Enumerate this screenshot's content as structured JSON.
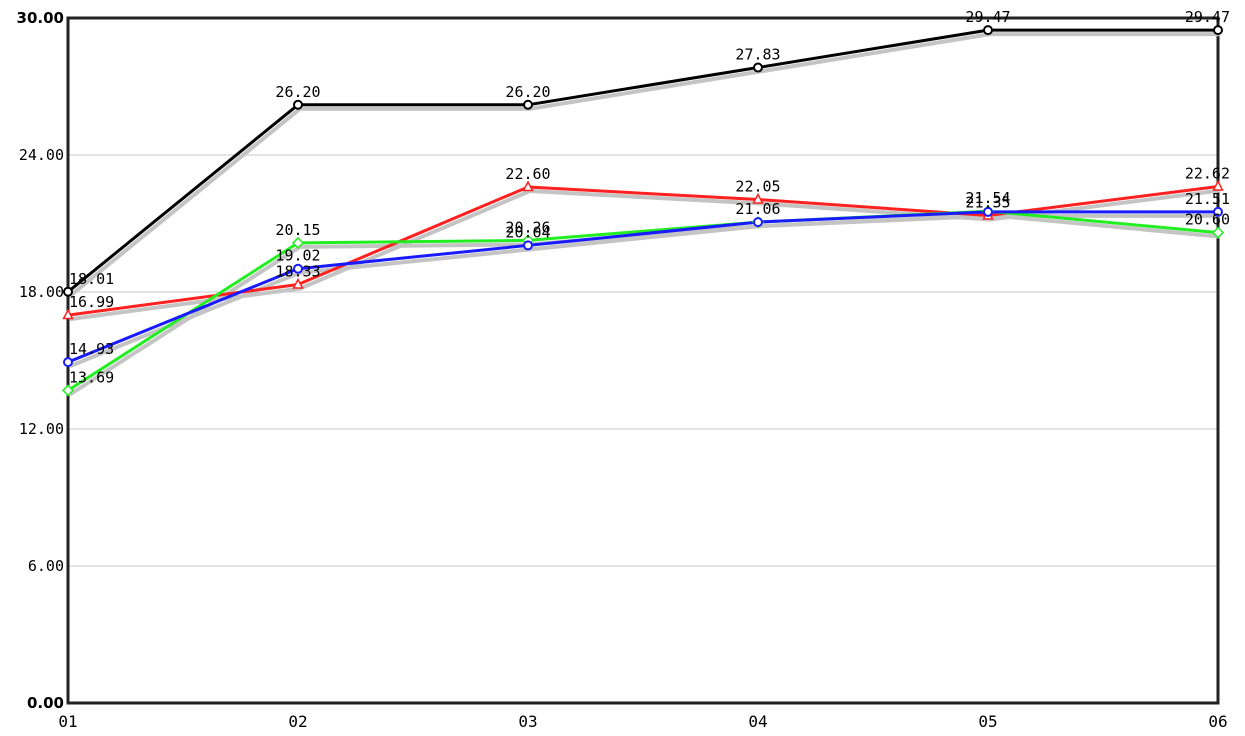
{
  "chart_data": {
    "type": "line",
    "categories": [
      "01",
      "02",
      "03",
      "04",
      "05",
      "06"
    ],
    "ylim": [
      0,
      30
    ],
    "yticks": [
      "0.00",
      "6.00",
      "12.00",
      "18.00",
      "24.00",
      "30.00"
    ],
    "grid": true,
    "legend": "none",
    "series": [
      {
        "color": "#000000",
        "marker": "circle",
        "values": [
          18.01,
          26.2,
          26.2,
          27.83,
          29.47,
          29.47
        ],
        "labels": [
          "18.01",
          "26.20",
          "26.20",
          "27.83",
          "29.47",
          "29.47"
        ]
      },
      {
        "color": "#ff2020",
        "marker": "triangle",
        "values": [
          16.99,
          18.33,
          22.6,
          22.05,
          21.35,
          22.62
        ],
        "labels": [
          "16.99",
          "18.33",
          "22.60",
          "22.05",
          "21.35",
          "22.62"
        ]
      },
      {
        "color": "#22ee22",
        "marker": "diamond",
        "values": [
          13.69,
          20.15,
          20.26,
          21.06,
          21.54,
          20.6
        ],
        "labels": [
          "13.69",
          "20.15",
          "20.26",
          "",
          "21.54",
          "20.60"
        ]
      },
      {
        "color": "#1a1aff",
        "marker": "circle",
        "values": [
          14.93,
          19.02,
          20.04,
          21.06,
          21.51,
          21.51
        ],
        "labels": [
          "14.93",
          "19.02",
          "20.04",
          "21.06",
          "",
          "21.51"
        ]
      }
    ]
  }
}
